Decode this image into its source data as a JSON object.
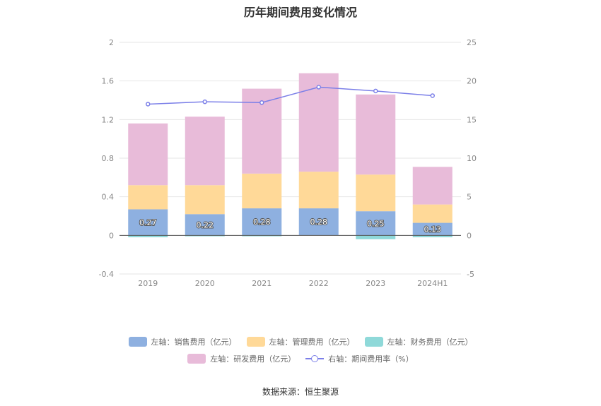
{
  "title": "历年期间费用变化情况",
  "source": "数据来源：恒生聚源",
  "chart_data": {
    "type": "bar",
    "stacked": true,
    "categories": [
      "2019",
      "2020",
      "2021",
      "2022",
      "2023",
      "2024H1"
    ],
    "series": [
      {
        "name": "左轴：销售费用（亿元）",
        "axis": "left",
        "color": "#8eb0e0",
        "values": [
          0.27,
          0.22,
          0.28,
          0.28,
          0.25,
          0.13
        ],
        "labels": [
          "0.27",
          "0.22",
          "0.28",
          "0.28",
          "0.25",
          "0.13"
        ]
      },
      {
        "name": "左轴：管理费用（亿元）",
        "axis": "left",
        "color": "#ffd998",
        "values": [
          0.25,
          0.3,
          0.36,
          0.38,
          0.38,
          0.19
        ]
      },
      {
        "name": "左轴：财务费用（亿元）",
        "axis": "left",
        "color": "#8fd9d9",
        "values": [
          -0.02,
          -0.01,
          -0.01,
          0.0,
          -0.04,
          -0.02
        ]
      },
      {
        "name": "左轴：研发费用（亿元）",
        "axis": "left",
        "color": "#e8bbd9",
        "values": [
          0.64,
          0.71,
          0.88,
          1.02,
          0.83,
          0.39
        ]
      },
      {
        "name": "右轴：期间费用率（%）",
        "axis": "right",
        "type": "line",
        "color": "#7b7fe8",
        "values": [
          17.0,
          17.3,
          17.2,
          19.2,
          18.7,
          18.1
        ]
      }
    ],
    "y_left": {
      "min": -0.4,
      "max": 2,
      "ticks": [
        "-0.4",
        "0",
        "0.4",
        "0.8",
        "1.2",
        "1.6",
        "2"
      ]
    },
    "y_right": {
      "min": -5,
      "max": 25,
      "ticks": [
        "-5",
        "0",
        "5",
        "10",
        "15",
        "20",
        "25"
      ]
    },
    "grid": true,
    "legend_position": "bottom"
  }
}
